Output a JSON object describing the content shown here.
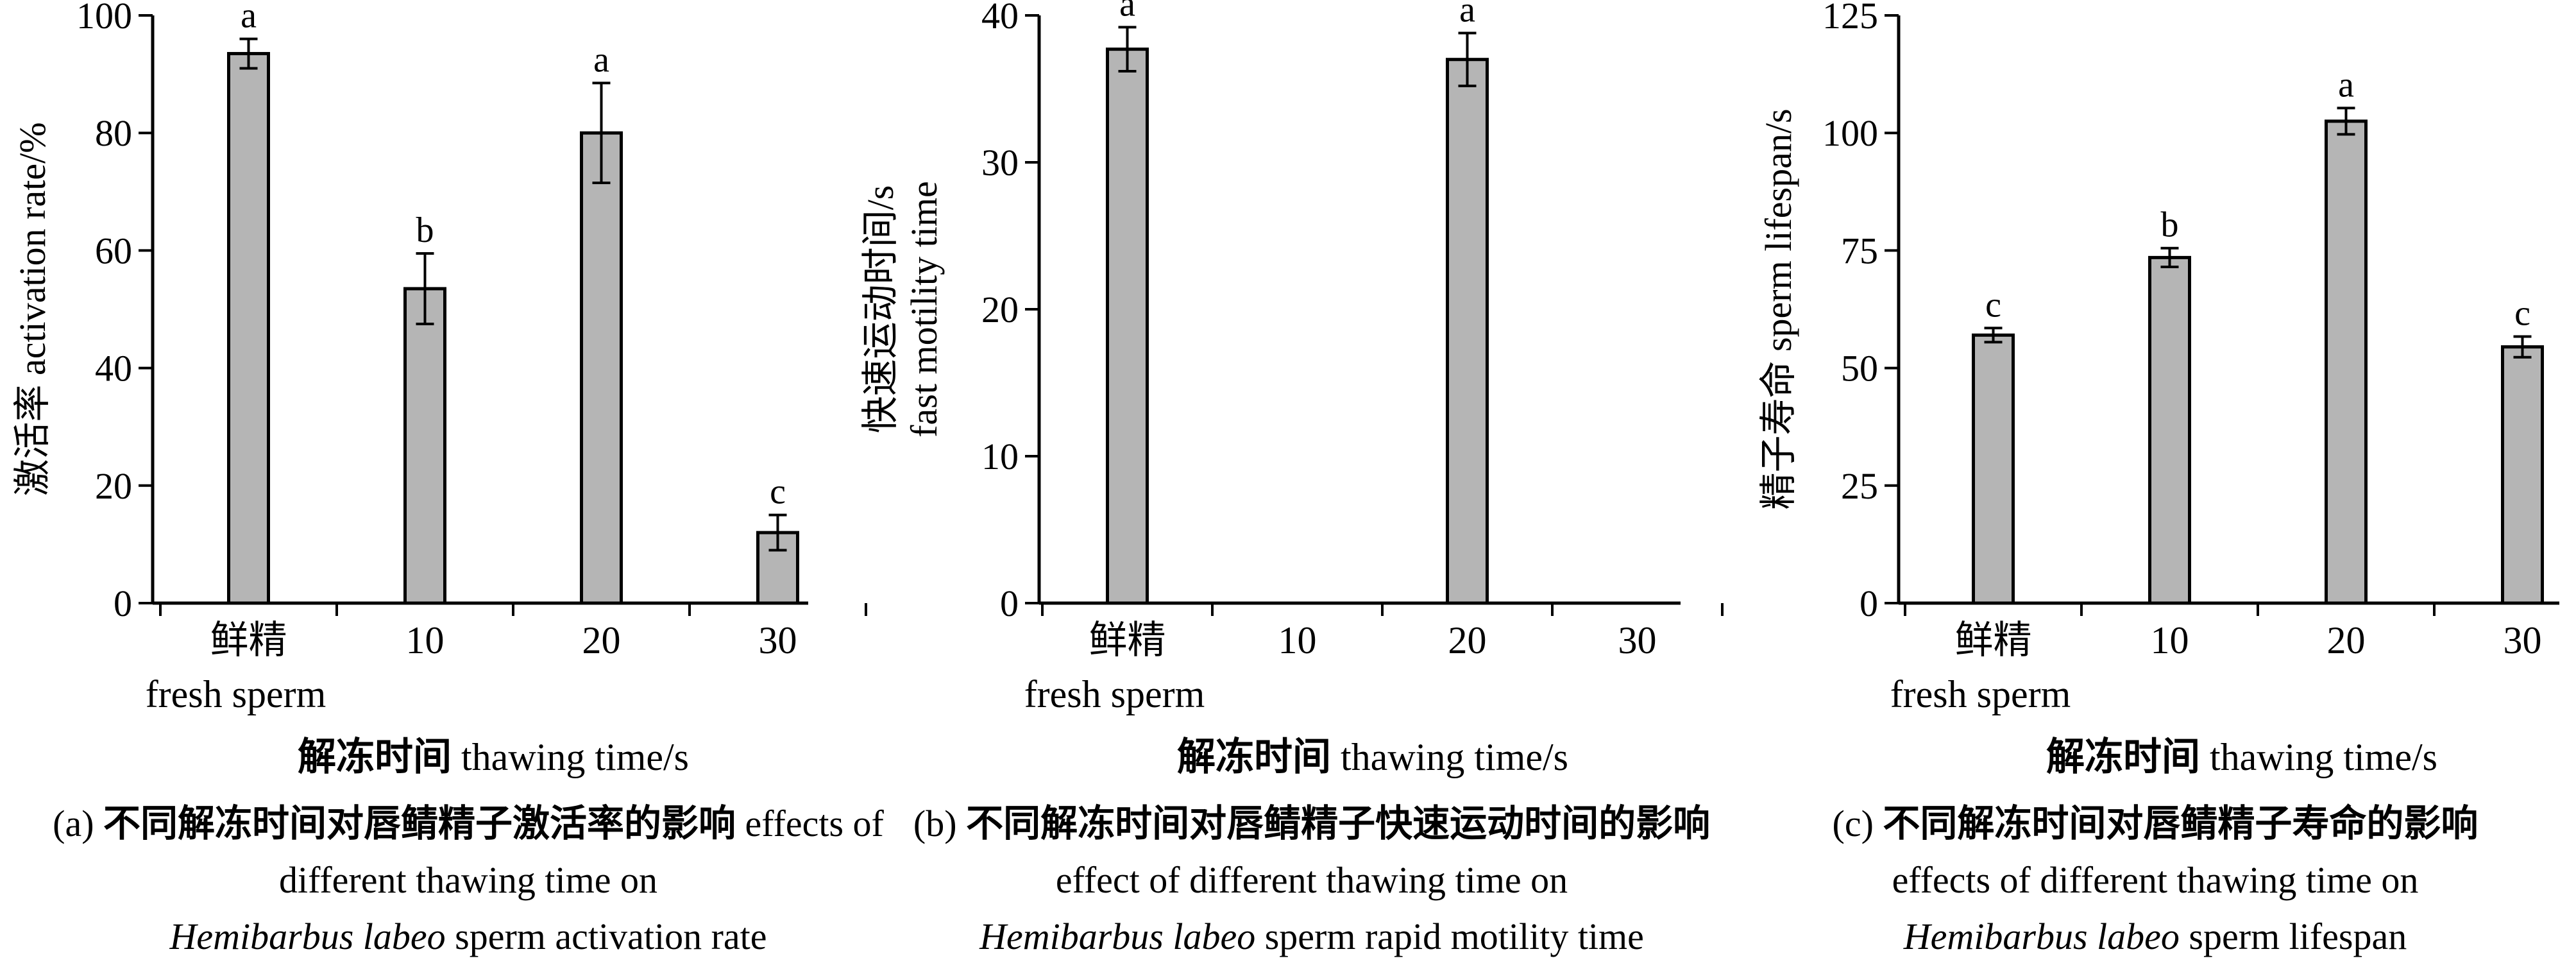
{
  "chart_data": [
    {
      "type": "bar",
      "ylabel": "激活率 activation rate/%",
      "xlabel_cn": "解冻时间",
      "xlabel_en": "thawing time/s",
      "categories": [
        {
          "cn": "鲜精",
          "en": "fresh sperm"
        },
        {
          "cn": "10",
          "en": ""
        },
        {
          "cn": "20",
          "en": ""
        },
        {
          "cn": "30",
          "en": ""
        }
      ],
      "values": [
        93.5,
        53.5,
        80,
        12
      ],
      "errors": [
        2.5,
        6,
        8.5,
        3
      ],
      "letters": [
        "a",
        "b",
        "a",
        "c"
      ],
      "ylim": [
        0,
        100
      ],
      "yticks": [
        0,
        20,
        40,
        60,
        80,
        100
      ],
      "grid": false,
      "bar_color": "#b5b5b5",
      "caption": {
        "prefix": "(a) ",
        "cn": "不同解冻时间对唇鲭精子激活率的影响",
        "en": "effects of different thawing time on",
        "sci": "Hemibarbus labeo",
        "tail": "sperm activation rate"
      }
    },
    {
      "type": "bar",
      "ylabel_cn": "快速运动时间/s",
      "ylabel_en": "fast motility time",
      "xlabel_cn": "解冻时间",
      "xlabel_en": "thawing time/s",
      "categories": [
        {
          "cn": "鲜精",
          "en": "fresh sperm"
        },
        {
          "cn": "10",
          "en": ""
        },
        {
          "cn": "20",
          "en": ""
        },
        {
          "cn": "30",
          "en": ""
        }
      ],
      "values": [
        37.7,
        null,
        37,
        null
      ],
      "errors": [
        1.5,
        null,
        1.8,
        null
      ],
      "letters": [
        "a",
        "",
        "a",
        ""
      ],
      "ylim": [
        0,
        40
      ],
      "yticks": [
        0,
        10,
        20,
        30,
        40
      ],
      "grid": false,
      "bar_color": "#b5b5b5",
      "caption": {
        "prefix": "(b) ",
        "cn": "不同解冻时间对唇鲭精子快速运动时间的影响",
        "en": "effect of different thawing time on",
        "sci": "Hemibarbus labeo",
        "tail": "sperm rapid motility time"
      }
    },
    {
      "type": "bar",
      "ylabel": "精子寿命 sperm lifespan/s",
      "xlabel_cn": "解冻时间",
      "xlabel_en": "thawing time/s",
      "categories": [
        {
          "cn": "鲜精",
          "en": "fresh sperm"
        },
        {
          "cn": "10",
          "en": ""
        },
        {
          "cn": "20",
          "en": ""
        },
        {
          "cn": "30",
          "en": ""
        }
      ],
      "values": [
        57,
        73.5,
        102.5,
        54.5
      ],
      "errors": [
        1.5,
        2,
        2.8,
        2.2
      ],
      "letters": [
        "c",
        "b",
        "a",
        "c"
      ],
      "ylim": [
        0,
        125
      ],
      "yticks": [
        0,
        25,
        50,
        75,
        100,
        125
      ],
      "grid": false,
      "bar_color": "#b5b5b5",
      "caption": {
        "prefix": "(c) ",
        "cn": "不同解冻时间对唇鲭精子寿命的影响",
        "en": "effects of different thawing time on",
        "sci": "Hemibarbus labeo",
        "tail": "sperm lifespan"
      }
    }
  ]
}
